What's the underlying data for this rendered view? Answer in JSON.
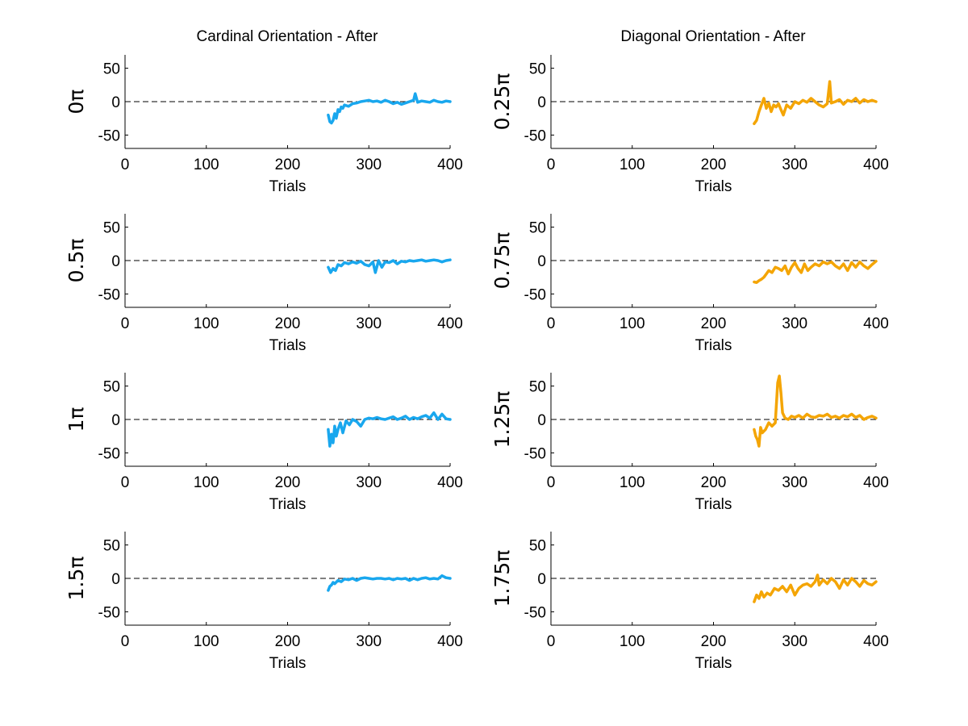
{
  "chart_data": {
    "type": "line",
    "xlabel": "Trials",
    "xlim": [
      0,
      400
    ],
    "ylim": [
      -70,
      70
    ],
    "xticks": [
      0,
      100,
      200,
      300,
      400
    ],
    "yticks": [
      -50,
      0,
      50
    ],
    "reference_line": {
      "y": 0,
      "style": "dashed"
    },
    "columns": [
      {
        "title": "Cardinal Orientation - After",
        "color": "#19A7EE",
        "panels": [
          {
            "ylabel": "0π",
            "x": [
              250,
              252,
              254,
              256,
              258,
              260,
              262,
              264,
              266,
              268,
              270,
              275,
              280,
              285,
              290,
              295,
              300,
              305,
              310,
              315,
              320,
              325,
              330,
              335,
              340,
              345,
              350,
              355,
              357,
              360,
              365,
              370,
              375,
              380,
              385,
              390,
              395,
              400
            ],
            "y": [
              -20,
              -30,
              -32,
              -28,
              -18,
              -25,
              -12,
              -15,
              -8,
              -10,
              -5,
              -7,
              -3,
              -2,
              0,
              1,
              2,
              0,
              1,
              -1,
              2,
              0,
              -3,
              -1,
              -4,
              -2,
              0,
              2,
              12,
              -1,
              1,
              0,
              -1,
              2,
              0,
              -1,
              1,
              0
            ]
          },
          {
            "ylabel": "0.5π",
            "x": [
              250,
              253,
              256,
              259,
              262,
              266,
              270,
              275,
              280,
              285,
              290,
              295,
              300,
              305,
              308,
              312,
              316,
              320,
              325,
              330,
              335,
              340,
              345,
              350,
              355,
              360,
              365,
              370,
              375,
              380,
              385,
              390,
              395,
              400
            ],
            "y": [
              -10,
              -18,
              -12,
              -15,
              -6,
              -8,
              -3,
              -5,
              -2,
              -4,
              -1,
              -6,
              -8,
              -2,
              -18,
              0,
              -10,
              -2,
              -3,
              0,
              -5,
              -1,
              -2,
              0,
              -1,
              0,
              1,
              -1,
              0,
              1,
              0,
              -2,
              0,
              1
            ]
          },
          {
            "ylabel": "1π",
            "x": [
              250,
              252,
              254,
              256,
              258,
              260,
              262,
              265,
              268,
              272,
              276,
              280,
              285,
              290,
              295,
              300,
              305,
              310,
              315,
              320,
              325,
              330,
              335,
              340,
              345,
              350,
              355,
              360,
              365,
              370,
              375,
              380,
              385,
              390,
              395,
              400
            ],
            "y": [
              -15,
              -40,
              -22,
              -35,
              -10,
              -25,
              -15,
              -5,
              -20,
              -2,
              -8,
              0,
              -3,
              -10,
              0,
              2,
              1,
              3,
              1,
              0,
              2,
              4,
              0,
              2,
              5,
              0,
              3,
              1,
              4,
              6,
              2,
              10,
              0,
              8,
              1,
              0
            ]
          },
          {
            "ylabel": "1.5π",
            "x": [
              250,
              252,
              254,
              256,
              258,
              262,
              266,
              270,
              275,
              280,
              285,
              290,
              295,
              300,
              305,
              310,
              315,
              320,
              325,
              330,
              335,
              340,
              345,
              350,
              355,
              360,
              365,
              370,
              375,
              380,
              385,
              390,
              395,
              400
            ],
            "y": [
              -18,
              -12,
              -10,
              -6,
              -8,
              -3,
              -5,
              -1,
              -2,
              0,
              -3,
              0,
              1,
              0,
              -1,
              0,
              0,
              -1,
              0,
              -2,
              0,
              -1,
              0,
              -3,
              0,
              -2,
              0,
              1,
              -1,
              0,
              -1,
              4,
              1,
              0
            ]
          }
        ]
      },
      {
        "title": "Diagonal Orientation - After",
        "color": "#F4A505",
        "panels": [
          {
            "ylabel": "0.25π",
            "x": [
              250,
              253,
              256,
              259,
              262,
              265,
              268,
              271,
              274,
              277,
              280,
              283,
              286,
              290,
              295,
              300,
              305,
              310,
              315,
              320,
              325,
              330,
              335,
              340,
              343,
              345,
              350,
              355,
              360,
              365,
              370,
              375,
              380,
              385,
              390,
              395,
              400
            ],
            "y": [
              -33,
              -28,
              -15,
              -5,
              5,
              -10,
              -2,
              -15,
              -5,
              -8,
              -3,
              -12,
              -20,
              -5,
              -10,
              0,
              -3,
              2,
              -1,
              5,
              0,
              -5,
              -8,
              -3,
              30,
              -2,
              0,
              3,
              -4,
              2,
              0,
              5,
              -2,
              3,
              0,
              2,
              0
            ]
          },
          {
            "ylabel": "0.75π",
            "x": [
              250,
              253,
              256,
              259,
              262,
              265,
              268,
              272,
              276,
              280,
              284,
              288,
              292,
              296,
              300,
              304,
              308,
              312,
              316,
              320,
              325,
              330,
              335,
              340,
              345,
              350,
              355,
              360,
              365,
              370,
              375,
              380,
              385,
              390,
              395,
              400
            ],
            "y": [
              -32,
              -33,
              -30,
              -28,
              -25,
              -20,
              -15,
              -18,
              -10,
              -12,
              -15,
              -8,
              -20,
              -10,
              -3,
              -12,
              -18,
              -5,
              -15,
              -10,
              -5,
              -8,
              -2,
              -5,
              -2,
              -8,
              -12,
              -5,
              -15,
              -3,
              -10,
              -2,
              -8,
              -12,
              -6,
              -1
            ]
          },
          {
            "ylabel": "1.25π",
            "x": [
              250,
              252,
              254,
              256,
              258,
              260,
              264,
              268,
              272,
              276,
              279,
              281,
              283,
              285,
              288,
              292,
              296,
              300,
              305,
              310,
              315,
              320,
              325,
              330,
              335,
              340,
              345,
              350,
              355,
              360,
              365,
              370,
              375,
              380,
              385,
              390,
              395,
              400
            ],
            "y": [
              -15,
              -25,
              -30,
              -40,
              -12,
              -20,
              -15,
              -5,
              -10,
              -5,
              55,
              65,
              40,
              10,
              2,
              0,
              5,
              3,
              6,
              2,
              8,
              4,
              3,
              6,
              5,
              8,
              3,
              5,
              2,
              6,
              4,
              8,
              3,
              6,
              0,
              3,
              5,
              2
            ]
          },
          {
            "ylabel": "1.75π",
            "x": [
              250,
              253,
              256,
              259,
              262,
              266,
              270,
              275,
              280,
              285,
              290,
              295,
              300,
              305,
              310,
              315,
              320,
              325,
              328,
              330,
              335,
              340,
              345,
              350,
              355,
              360,
              365,
              370,
              375,
              380,
              385,
              390,
              395,
              400
            ],
            "y": [
              -35,
              -25,
              -30,
              -20,
              -28,
              -22,
              -25,
              -15,
              -18,
              -12,
              -20,
              -10,
              -25,
              -15,
              -10,
              -8,
              -12,
              -5,
              5,
              -10,
              -2,
              -8,
              0,
              -5,
              -15,
              -2,
              -10,
              0,
              -5,
              -12,
              -3,
              -8,
              -10,
              -5
            ]
          }
        ]
      }
    ]
  }
}
